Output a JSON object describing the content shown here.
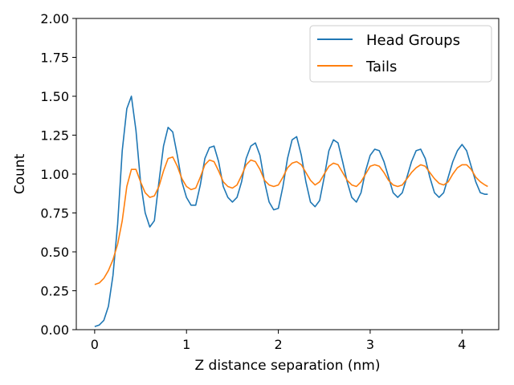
{
  "chart_data": {
    "type": "line",
    "title": "",
    "xlabel": "Z distance separation (nm)",
    "ylabel": "Count",
    "xlim": [
      -0.2,
      4.4
    ],
    "ylim": [
      0,
      2.0
    ],
    "xticks": [
      "0",
      "1",
      "2",
      "3",
      "4"
    ],
    "yticks": [
      "0.00",
      "0.25",
      "0.50",
      "0.75",
      "1.00",
      "1.25",
      "1.50",
      "1.75",
      "2.00"
    ],
    "grid": false,
    "legend_position": "top-right",
    "series": [
      {
        "name": "Head Groups",
        "color": "#1f77b4",
        "x": [
          0.0,
          0.05,
          0.1,
          0.15,
          0.2,
          0.25,
          0.3,
          0.35,
          0.4,
          0.45,
          0.5,
          0.55,
          0.6,
          0.65,
          0.7,
          0.75,
          0.8,
          0.85,
          0.9,
          0.95,
          1.0,
          1.05,
          1.1,
          1.15,
          1.2,
          1.25,
          1.3,
          1.35,
          1.4,
          1.45,
          1.5,
          1.55,
          1.6,
          1.65,
          1.7,
          1.75,
          1.8,
          1.85,
          1.9,
          1.95,
          2.0,
          2.05,
          2.1,
          2.15,
          2.2,
          2.25,
          2.3,
          2.35,
          2.4,
          2.45,
          2.5,
          2.55,
          2.6,
          2.65,
          2.7,
          2.75,
          2.8,
          2.85,
          2.9,
          2.95,
          3.0,
          3.05,
          3.1,
          3.15,
          3.2,
          3.25,
          3.3,
          3.35,
          3.4,
          3.45,
          3.5,
          3.55,
          3.6,
          3.65,
          3.7,
          3.75,
          3.8,
          3.85,
          3.9,
          3.95,
          4.0,
          4.05,
          4.1,
          4.15,
          4.2,
          4.25,
          4.28
        ],
        "y": [
          0.02,
          0.03,
          0.06,
          0.15,
          0.35,
          0.68,
          1.15,
          1.42,
          1.5,
          1.28,
          0.95,
          0.75,
          0.66,
          0.7,
          0.95,
          1.18,
          1.3,
          1.27,
          1.12,
          0.95,
          0.85,
          0.8,
          0.8,
          0.93,
          1.1,
          1.17,
          1.18,
          1.08,
          0.92,
          0.85,
          0.82,
          0.85,
          0.95,
          1.1,
          1.18,
          1.2,
          1.12,
          0.95,
          0.82,
          0.77,
          0.78,
          0.92,
          1.1,
          1.22,
          1.24,
          1.12,
          0.95,
          0.82,
          0.79,
          0.83,
          0.98,
          1.15,
          1.22,
          1.2,
          1.08,
          0.95,
          0.85,
          0.82,
          0.88,
          1.02,
          1.12,
          1.16,
          1.15,
          1.08,
          0.98,
          0.88,
          0.85,
          0.88,
          0.98,
          1.08,
          1.15,
          1.16,
          1.1,
          0.98,
          0.88,
          0.85,
          0.88,
          0.98,
          1.08,
          1.15,
          1.19,
          1.15,
          1.05,
          0.95,
          0.88,
          0.87,
          0.87
        ]
      },
      {
        "name": "Tails",
        "color": "#ff7f0e",
        "x": [
          0.0,
          0.05,
          0.1,
          0.15,
          0.2,
          0.25,
          0.3,
          0.35,
          0.4,
          0.45,
          0.5,
          0.55,
          0.6,
          0.65,
          0.7,
          0.75,
          0.8,
          0.85,
          0.9,
          0.95,
          1.0,
          1.05,
          1.1,
          1.15,
          1.2,
          1.25,
          1.3,
          1.35,
          1.4,
          1.45,
          1.5,
          1.55,
          1.6,
          1.65,
          1.7,
          1.75,
          1.8,
          1.85,
          1.9,
          1.95,
          2.0,
          2.05,
          2.1,
          2.15,
          2.2,
          2.25,
          2.3,
          2.35,
          2.4,
          2.45,
          2.5,
          2.55,
          2.6,
          2.65,
          2.7,
          2.75,
          2.8,
          2.85,
          2.9,
          2.95,
          3.0,
          3.05,
          3.1,
          3.15,
          3.2,
          3.25,
          3.3,
          3.35,
          3.4,
          3.45,
          3.5,
          3.55,
          3.6,
          3.65,
          3.7,
          3.75,
          3.8,
          3.85,
          3.9,
          3.95,
          4.0,
          4.05,
          4.1,
          4.15,
          4.2,
          4.25,
          4.28
        ],
        "y": [
          0.29,
          0.3,
          0.33,
          0.38,
          0.45,
          0.55,
          0.7,
          0.92,
          1.03,
          1.03,
          0.95,
          0.88,
          0.85,
          0.86,
          0.92,
          1.02,
          1.1,
          1.11,
          1.05,
          0.97,
          0.92,
          0.9,
          0.91,
          0.98,
          1.06,
          1.09,
          1.08,
          1.02,
          0.95,
          0.92,
          0.91,
          0.93,
          0.99,
          1.06,
          1.09,
          1.08,
          1.03,
          0.96,
          0.93,
          0.92,
          0.93,
          0.98,
          1.04,
          1.07,
          1.08,
          1.06,
          1.01,
          0.96,
          0.93,
          0.95,
          1.0,
          1.05,
          1.07,
          1.06,
          1.01,
          0.96,
          0.93,
          0.92,
          0.95,
          1.0,
          1.05,
          1.06,
          1.05,
          1.01,
          0.96,
          0.93,
          0.92,
          0.93,
          0.97,
          1.01,
          1.04,
          1.06,
          1.05,
          1.01,
          0.97,
          0.94,
          0.93,
          0.95,
          1.0,
          1.04,
          1.06,
          1.06,
          1.03,
          0.98,
          0.95,
          0.93,
          0.92
        ]
      }
    ]
  }
}
